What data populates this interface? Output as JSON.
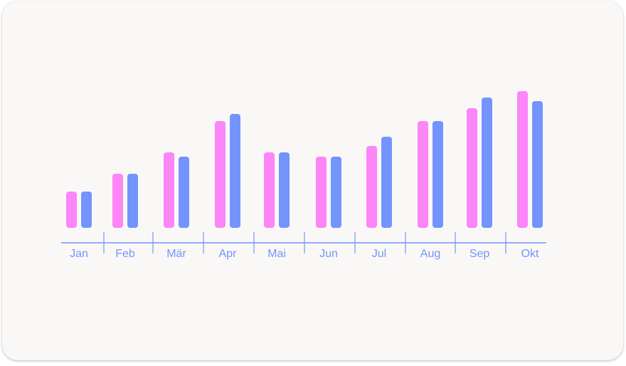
{
  "colors": {
    "card_background": "#faf8f7",
    "series_a": "#fc85f7",
    "series_b": "#7394fc",
    "axis": "#7394fc"
  },
  "chart_data": {
    "type": "bar",
    "categories": [
      "Jan",
      "Feb",
      "Mär",
      "Apr",
      "Mai",
      "Jun",
      "Jul",
      "Aug",
      "Sep",
      "Okt"
    ],
    "series": [
      {
        "values": [
          51,
          76,
          106,
          150,
          106,
          100,
          115,
          150,
          168,
          192
        ]
      },
      {
        "values": [
          51,
          76,
          100,
          160,
          106,
          100,
          128,
          150,
          183,
          178
        ]
      }
    ],
    "ylim": [
      0,
      200
    ],
    "grid": false,
    "legend": "none",
    "title": "",
    "xlabel": "",
    "ylabel": ""
  }
}
